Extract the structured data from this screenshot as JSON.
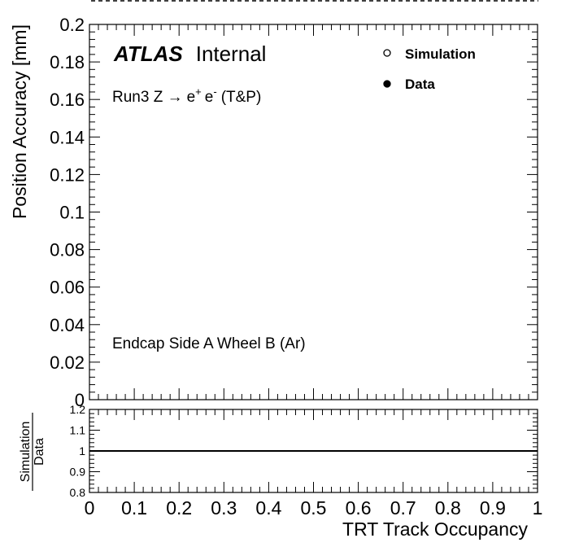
{
  "chart_data": [
    {
      "type": "scatter",
      "xlabel": "",
      "ylabel": "Position Accuracy [mm]",
      "xlim": [
        0,
        1
      ],
      "ylim": [
        0,
        0.2
      ],
      "yticks": [
        "0",
        "0.02",
        "0.04",
        "0.06",
        "0.08",
        "0.1",
        "0.12",
        "0.14",
        "0.16",
        "0.18",
        "0.2"
      ],
      "experiment": "ATLAS",
      "status": "Internal",
      "process": {
        "prefix": "Run3 Z ",
        "arrow": "→",
        "ep": "e",
        "ep_sup": "+",
        "em": "e",
        "em_sup": "-",
        "suffix": "(T&P)"
      },
      "region": "Endcap Side A Wheel B (Ar)",
      "legend": [
        {
          "label": "Simulation",
          "marker": "open-circle"
        },
        {
          "label": "Data",
          "marker": "filled-circle"
        }
      ],
      "series": [
        {
          "name": "Simulation",
          "x": [],
          "y": []
        },
        {
          "name": "Data",
          "x": [],
          "y": []
        }
      ]
    },
    {
      "type": "line",
      "xlabel": "TRT Track Occupancy",
      "ylabel_num": "Simulation",
      "ylabel_den": "Data",
      "xlim": [
        0,
        1
      ],
      "ylim": [
        0.8,
        1.2
      ],
      "xticks": [
        "0",
        "0.1",
        "0.2",
        "0.3",
        "0.4",
        "0.5",
        "0.6",
        "0.7",
        "0.8",
        "0.9",
        "1"
      ],
      "yticks": [
        "0.8",
        "0.9",
        "1",
        "1.1",
        "1.2"
      ],
      "reference_line": 1
    }
  ],
  "colors": {
    "axis": "#000000",
    "background": "#ffffff"
  }
}
